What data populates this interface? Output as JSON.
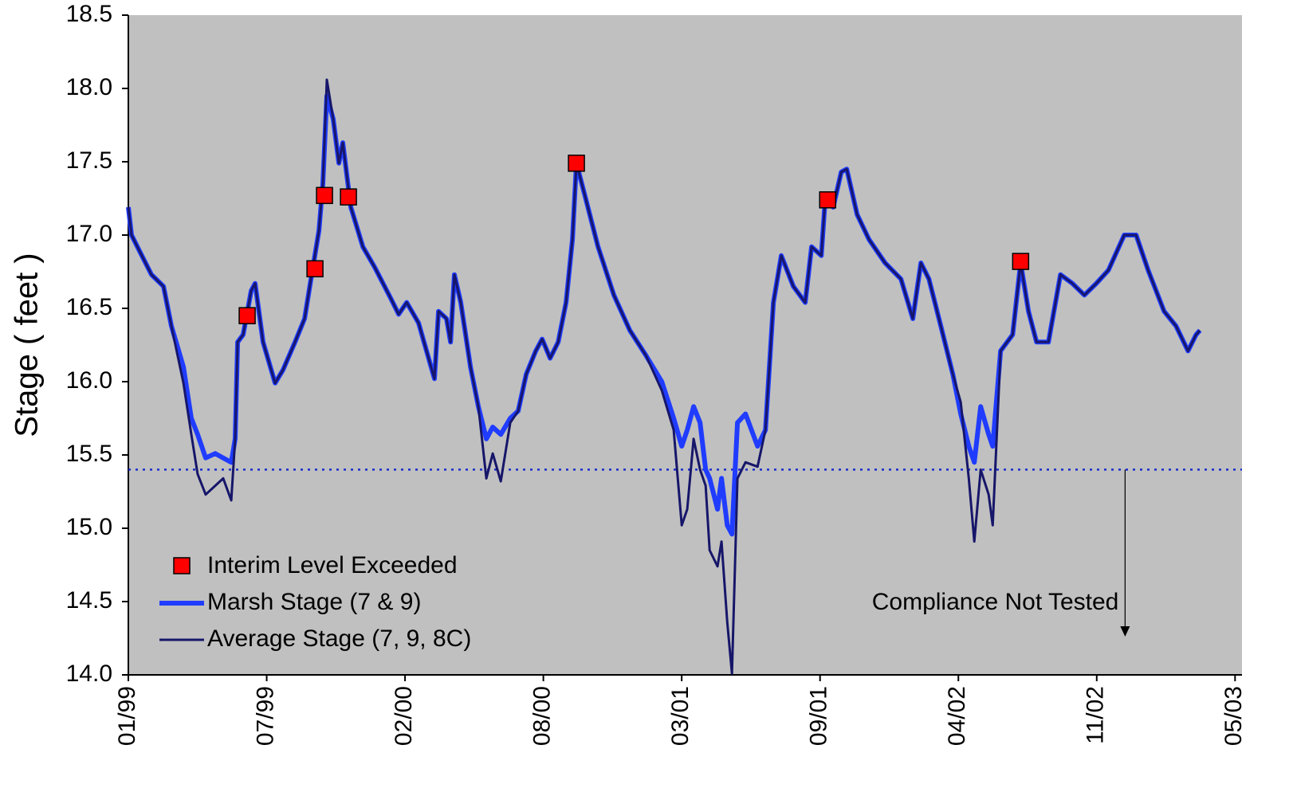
{
  "chart_data": {
    "type": "line",
    "ylabel": "Stage ( feet )",
    "ylim": [
      14,
      18.5
    ],
    "yticks": [
      {
        "value": 14,
        "label": "14.0"
      },
      14.5,
      {
        "value": 15,
        "label": "15.0"
      },
      15.5,
      {
        "value": 16,
        "label": "16.0"
      },
      16.5,
      {
        "value": 17,
        "label": "17.0"
      },
      17.5,
      {
        "value": 18,
        "label": "18.0"
      },
      18.5
    ],
    "xlim": [
      0,
      8.05
    ],
    "xticks": [
      {
        "value": 0,
        "label": "01/99"
      },
      {
        "value": 1,
        "label": "07/99"
      },
      {
        "value": 2,
        "label": "02/00"
      },
      {
        "value": 3,
        "label": "08/00"
      },
      {
        "value": 4,
        "label": "03/01"
      },
      {
        "value": 5,
        "label": "09/01"
      },
      {
        "value": 6,
        "label": "04/02"
      },
      {
        "value": 7,
        "label": "11/02"
      },
      {
        "value": 8,
        "label": "05/03"
      }
    ],
    "background": "#c0c0c0",
    "legend": "lower left",
    "x": [
      0,
      0.023,
      0.081,
      0.167,
      0.254,
      0.311,
      0.398,
      0.455,
      0.501,
      0.559,
      0.628,
      0.686,
      0.744,
      0.772,
      0.79,
      0.83,
      0.888,
      0.916,
      0.974,
      1.061,
      1.118,
      1.205,
      1.274,
      1.32,
      1.378,
      1.406,
      1.435,
      1.481,
      1.522,
      1.55,
      1.608,
      1.695,
      1.781,
      1.896,
      1.954,
      2.012,
      2.098,
      2.213,
      2.242,
      2.3,
      2.329,
      2.357,
      2.403,
      2.473,
      2.53,
      2.588,
      2.634,
      2.692,
      2.761,
      2.818,
      2.876,
      2.945,
      2.991,
      3.049,
      3.107,
      3.164,
      3.21,
      3.239,
      3.308,
      3.395,
      3.51,
      3.625,
      3.741,
      3.856,
      3.942,
      4.0,
      4.04,
      4.086,
      4.133,
      4.173,
      4.202,
      4.259,
      4.288,
      4.329,
      4.363,
      4.403,
      4.461,
      4.548,
      4.605,
      4.663,
      4.72,
      4.807,
      4.893,
      4.939,
      5.009,
      5.037,
      5.095,
      5.153,
      5.193,
      5.268,
      5.354,
      5.47,
      5.585,
      5.671,
      5.729,
      5.787,
      5.873,
      5.96,
      6.017,
      6.075,
      6.115,
      6.161,
      6.219,
      6.248,
      6.305,
      6.392,
      6.45,
      6.507,
      6.565,
      6.651,
      6.738,
      6.824,
      6.911,
      6.997,
      7.084,
      7.199,
      7.285,
      7.372,
      7.487,
      7.573,
      7.66,
      7.718,
      7.746
    ],
    "series": [
      {
        "name": "Marsh Stage (7 & 9)",
        "color": "#1f3cff",
        "width": 6,
        "values": [
          17.19,
          17,
          16.89,
          16.73,
          16.65,
          16.38,
          16.1,
          15.75,
          15.64,
          15.48,
          15.51,
          15.48,
          15.45,
          15.61,
          16.27,
          16.32,
          16.62,
          16.67,
          16.27,
          15.99,
          16.08,
          16.27,
          16.43,
          16.7,
          17.03,
          17.35,
          17.95,
          17.79,
          17.49,
          17.63,
          17.19,
          16.92,
          16.78,
          16.57,
          16.46,
          16.54,
          16.4,
          16.02,
          16.48,
          16.43,
          16.27,
          16.73,
          16.54,
          16.1,
          15.83,
          15.61,
          15.69,
          15.64,
          15.75,
          15.8,
          16.05,
          16.21,
          16.29,
          16.16,
          16.27,
          16.54,
          16.97,
          17.49,
          17.24,
          16.92,
          16.59,
          16.35,
          16.18,
          16,
          15.75,
          15.56,
          15.67,
          15.83,
          15.72,
          15.4,
          15.34,
          15.13,
          15.34,
          15.02,
          14.96,
          15.72,
          15.78,
          15.56,
          15.67,
          16.54,
          16.86,
          16.65,
          16.54,
          16.92,
          16.86,
          17.24,
          17.19,
          17.43,
          17.45,
          17.14,
          16.97,
          16.81,
          16.7,
          16.43,
          16.81,
          16.7,
          16.38,
          16.05,
          15.78,
          15.56,
          15.45,
          15.83,
          15.64,
          15.56,
          16.21,
          16.32,
          16.81,
          16.48,
          16.27,
          16.27,
          16.73,
          16.67,
          16.59,
          16.67,
          16.76,
          17,
          17,
          16.76,
          16.48,
          16.38,
          16.21,
          16.32,
          16.35
        ]
      },
      {
        "name": "Average Stage (7, 9, 8C)",
        "color": "#16166a",
        "width": 3,
        "values": [
          17.19,
          17,
          16.89,
          16.73,
          16.65,
          16.38,
          15.99,
          15.64,
          15.37,
          15.23,
          15.29,
          15.34,
          15.19,
          15.61,
          16.27,
          16.32,
          16.62,
          16.67,
          16.27,
          15.99,
          16.08,
          16.27,
          16.43,
          16.7,
          17.03,
          17.35,
          18.06,
          17.79,
          17.49,
          17.63,
          17.19,
          16.92,
          16.78,
          16.57,
          16.46,
          16.54,
          16.4,
          16.02,
          16.48,
          16.43,
          16.27,
          16.73,
          16.54,
          16.1,
          15.83,
          15.34,
          15.51,
          15.32,
          15.72,
          15.8,
          16.05,
          16.21,
          16.29,
          16.16,
          16.27,
          16.54,
          16.97,
          17.49,
          17.24,
          16.92,
          16.59,
          16.35,
          16.18,
          15.94,
          15.67,
          15.02,
          15.13,
          15.61,
          15.4,
          15.29,
          14.85,
          14.74,
          14.91,
          14.36,
          14.01,
          15.34,
          15.45,
          15.42,
          15.67,
          16.54,
          16.86,
          16.65,
          16.54,
          16.92,
          16.86,
          17.24,
          17.19,
          17.43,
          17.45,
          17.14,
          16.97,
          16.81,
          16.7,
          16.43,
          16.81,
          16.7,
          16.38,
          16.05,
          15.86,
          15.34,
          14.91,
          15.4,
          15.23,
          15.02,
          16.21,
          16.32,
          16.81,
          16.48,
          16.27,
          16.27,
          16.73,
          16.67,
          16.59,
          16.67,
          16.76,
          17,
          17,
          16.76,
          16.48,
          16.38,
          16.21,
          16.32,
          16.35
        ]
      }
    ],
    "markers": {
      "name": "Interim Level Exceeded",
      "color": "#ff0000",
      "x": [
        0.859,
        1.349,
        1.418,
        1.591,
        3.239,
        5.055,
        6.45
      ],
      "values": [
        16.45,
        16.77,
        17.27,
        17.26,
        17.49,
        17.24,
        16.82
      ]
    },
    "reference_line": {
      "value": 15.4,
      "color": "#1a2ccc"
    },
    "annotation": {
      "text": "Compliance Not Tested",
      "x": 7.205
    }
  }
}
